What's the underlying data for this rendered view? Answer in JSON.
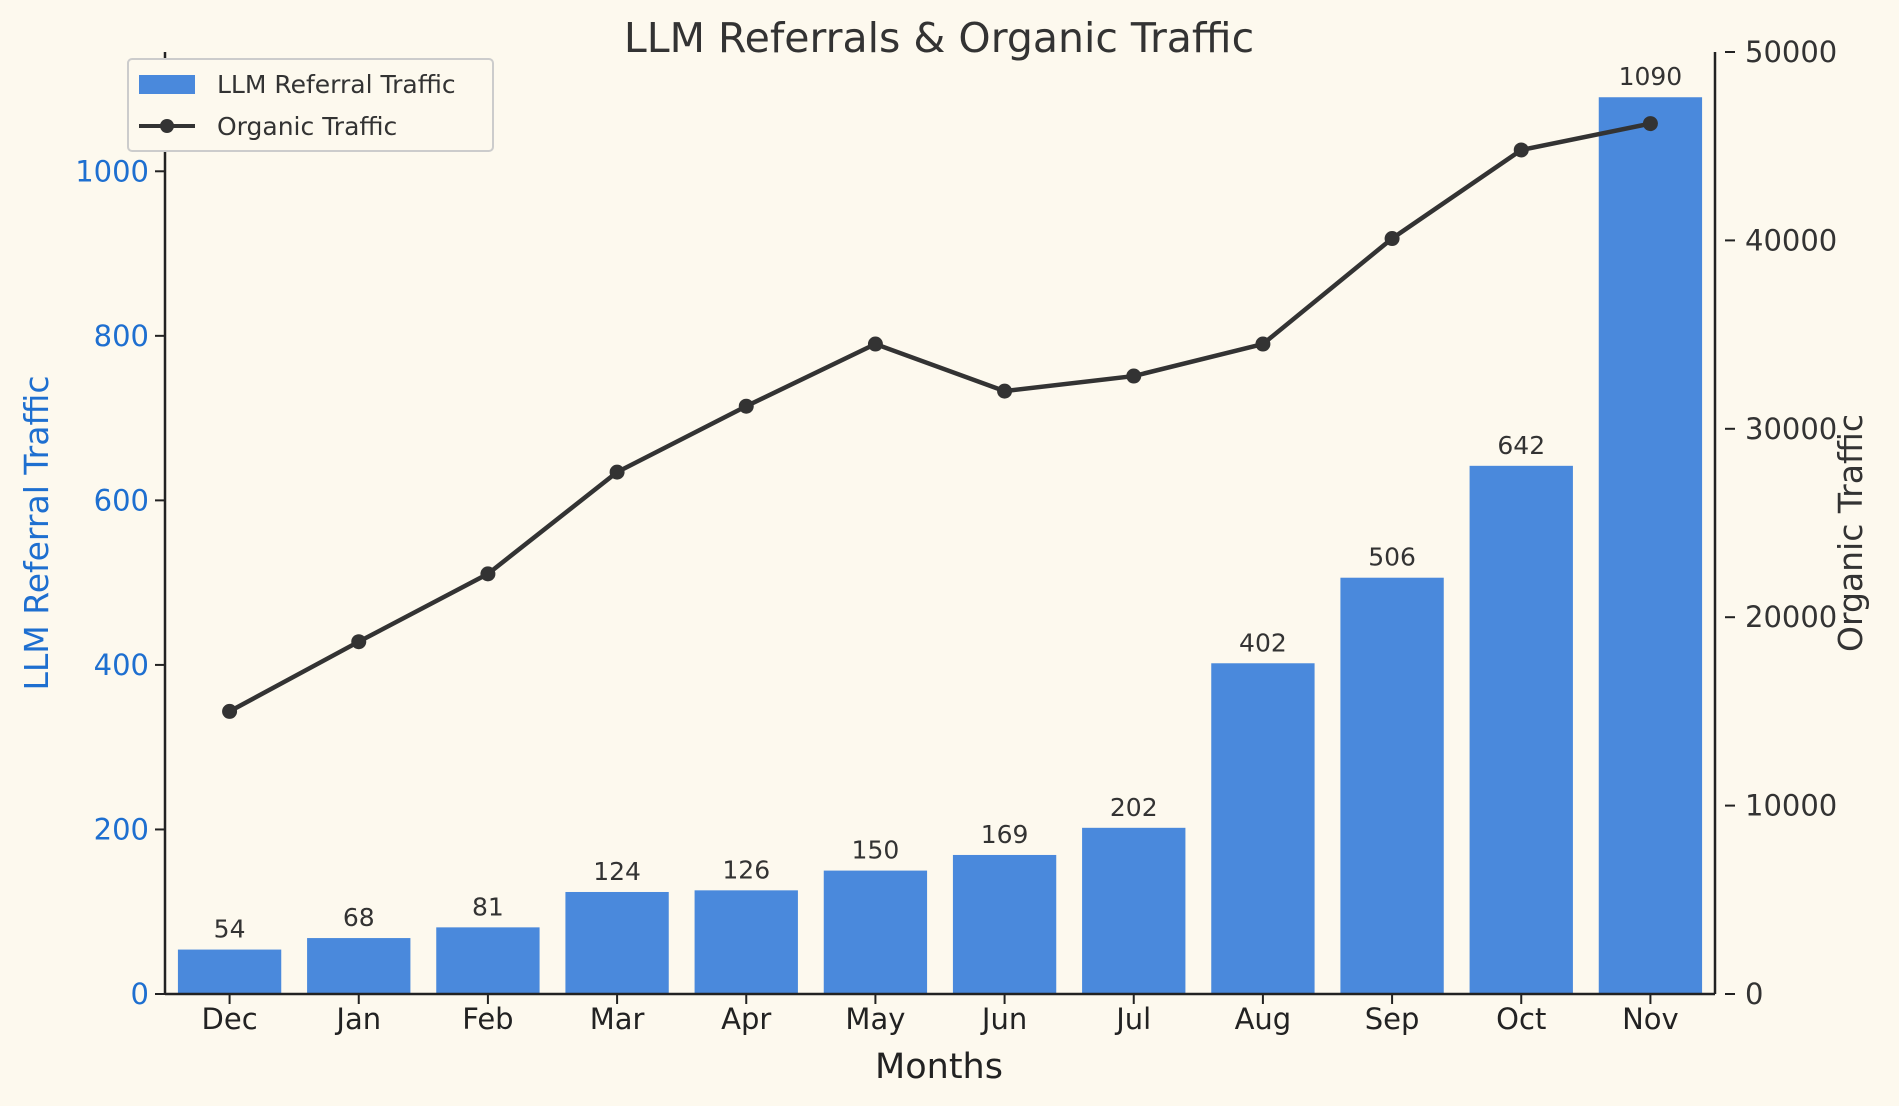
{
  "colors": {
    "background": "#fdf9ee",
    "bar": "#4a89dc",
    "left_axis": "#1e6fd0",
    "line": "#333333"
  },
  "chart_data": {
    "type": "bar+line",
    "title": "LLM Referrals & Organic Traffic",
    "xlabel": "Months",
    "ylabel_left": "LLM Referral Traffic",
    "ylabel_right": "Organic Traffic",
    "categories": [
      "Dec",
      "Jan",
      "Feb",
      "Mar",
      "Apr",
      "May",
      "Jun",
      "Jul",
      "Aug",
      "Sep",
      "Oct",
      "Nov"
    ],
    "series": [
      {
        "name": "LLM Referral Traffic",
        "type": "bar",
        "axis": "left",
        "values": [
          54,
          68,
          81,
          124,
          126,
          150,
          169,
          202,
          402,
          506,
          642,
          1090
        ]
      },
      {
        "name": "Organic Traffic",
        "type": "line",
        "axis": "right",
        "values": [
          15000,
          18700,
          22300,
          27700,
          31200,
          34500,
          32000,
          32800,
          34500,
          40100,
          44800,
          46200
        ]
      }
    ],
    "ylim_left": [
      0,
      1145
    ],
    "ylim_right": [
      0,
      50000
    ],
    "yticks_left": [
      0,
      200,
      400,
      600,
      800,
      1000
    ],
    "yticks_right": [
      0,
      10000,
      20000,
      30000,
      40000,
      50000
    ],
    "grid": false,
    "legend_position": "top-left",
    "data_labels": true
  }
}
